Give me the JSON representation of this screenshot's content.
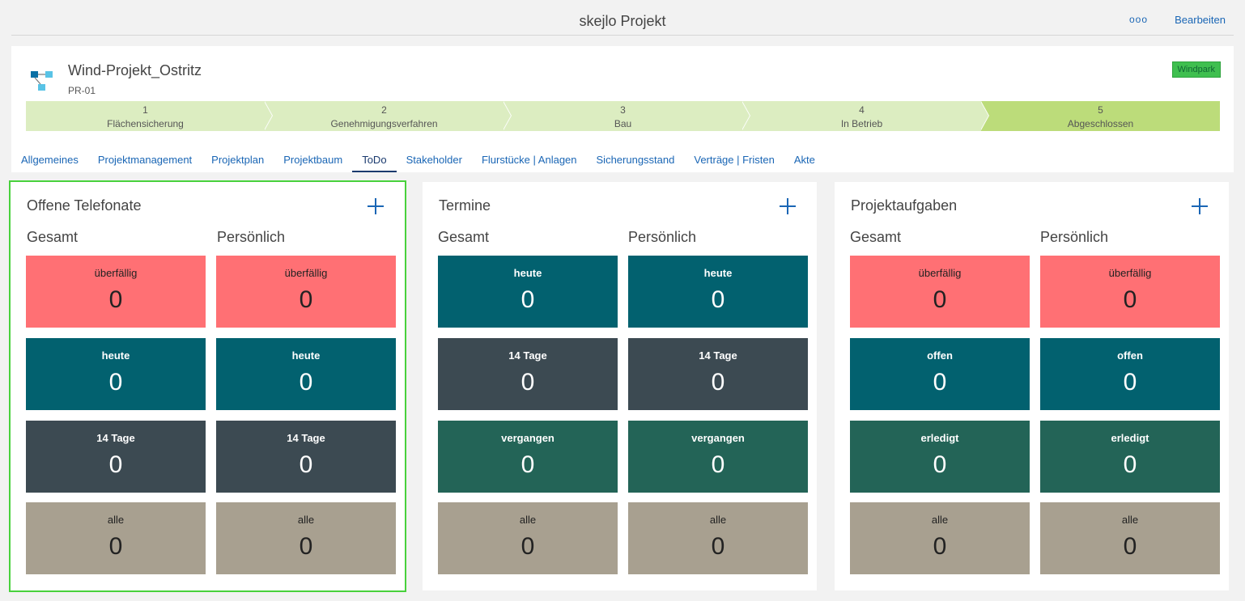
{
  "header": {
    "app_title": "skejlo Projekt",
    "more_label": "ooo",
    "edit_label": "Bearbeiten"
  },
  "project": {
    "name": "Wind-Projekt_Ostritz",
    "code": "PR-01",
    "badge": "Windpark",
    "badge_color": "#3fbf4f",
    "icon": "hierarchy-icon"
  },
  "stages": [
    {
      "number": "1",
      "label": "Flächensicherung"
    },
    {
      "number": "2",
      "label": "Genehmigungsverfahren"
    },
    {
      "number": "3",
      "label": "Bau"
    },
    {
      "number": "4",
      "label": "In Betrieb"
    },
    {
      "number": "5",
      "label": "Abgeschlossen"
    }
  ],
  "tabs": [
    {
      "label": "Allgemeines"
    },
    {
      "label": "Projektmanagement"
    },
    {
      "label": "Projektplan"
    },
    {
      "label": "Projektbaum"
    },
    {
      "label": "ToDo"
    },
    {
      "label": "Stakeholder"
    },
    {
      "label": "Flurstücke | Anlagen"
    },
    {
      "label": "Sicherungsstand"
    },
    {
      "label": "Verträge | Fristen"
    },
    {
      "label": "Akte"
    }
  ],
  "panels": [
    {
      "title": "Offene Telefonate",
      "col_total": "Gesamt",
      "col_personal": "Persönlich",
      "rows": [
        {
          "label": "überfällig",
          "total": "0",
          "personal": "0"
        },
        {
          "label": "heute",
          "total": "0",
          "personal": "0"
        },
        {
          "label": "14 Tage",
          "total": "0",
          "personal": "0"
        },
        {
          "label": "alle",
          "total": "0",
          "personal": "0"
        }
      ]
    },
    {
      "title": "Termine",
      "col_total": "Gesamt",
      "col_personal": "Persönlich",
      "rows": [
        {
          "label": "heute",
          "total": "0",
          "personal": "0"
        },
        {
          "label": "14 Tage",
          "total": "0",
          "personal": "0"
        },
        {
          "label": "vergangen",
          "total": "0",
          "personal": "0"
        },
        {
          "label": "alle",
          "total": "0",
          "personal": "0"
        }
      ]
    },
    {
      "title": "Projektaufgaben",
      "col_total": "Gesamt",
      "col_personal": "Persönlich",
      "rows": [
        {
          "label": "überfällig",
          "total": "0",
          "personal": "0"
        },
        {
          "label": "offen",
          "total": "0",
          "personal": "0"
        },
        {
          "label": "erledigt",
          "total": "0",
          "personal": "0"
        },
        {
          "label": "alle",
          "total": "0",
          "personal": "0"
        }
      ]
    }
  ],
  "colors": {
    "overdue": "#ff7074",
    "teal": "#02616f",
    "slate": "#3c4a52",
    "green": "#236457",
    "taupe": "#a8a090",
    "link": "#1a66b5",
    "selection": "#48d13c"
  }
}
